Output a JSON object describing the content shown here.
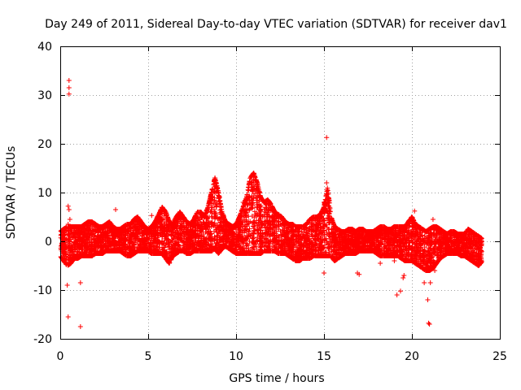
{
  "chart_data": {
    "type": "scatter",
    "title": "Day 249 of 2011, Sidereal Day-to-day VTEC variation (SDTVAR) for receiver dav1",
    "xlabel": "GPS time / hours",
    "ylabel": "SDTVAR / TECUs",
    "xlim": [
      0,
      25
    ],
    "ylim": [
      -20,
      40
    ],
    "xticks": [
      0,
      5,
      10,
      15,
      20,
      25
    ],
    "xtick_labels": [
      "0",
      "5",
      "10",
      "15",
      "20",
      "25"
    ],
    "yticks": [
      -20,
      -10,
      0,
      10,
      20,
      30,
      40
    ],
    "ytick_labels": [
      "-20",
      "-10",
      "0",
      "10",
      "20",
      "30",
      "40"
    ],
    "grid": true,
    "marker": "+",
    "color": "#ff0000",
    "series": [
      {
        "name": "SDTVAR",
        "x": [
          0.5,
          0.5,
          0.5,
          0.45,
          0.5,
          0.55,
          0.4,
          0.45,
          0.45,
          1.15,
          1.15,
          0.55,
          3.15,
          5.2,
          10.4,
          10.55,
          10.95,
          11.35,
          11.8,
          12.35,
          14.2,
          14.75,
          15.15,
          15.15,
          15.0,
          16.9,
          17.0,
          19.15,
          19.35,
          19.5,
          19.55,
          20.15,
          20.7,
          20.9,
          20.95,
          21.0,
          21.05,
          21.2,
          21.3,
          15.0,
          18.2,
          19.0
        ],
        "y": [
          33,
          31.5,
          30.2,
          7.2,
          6.5,
          4.5,
          -9,
          -15.5,
          3.5,
          -17.5,
          -8.5,
          -3.5,
          6.5,
          5.3,
          8,
          5.5,
          7,
          6,
          5.5,
          5,
          4.5,
          5,
          21.3,
          12,
          8,
          -6.5,
          -6.8,
          -11,
          -10.2,
          -7.5,
          -7,
          6.2,
          -8.5,
          -12,
          -16.8,
          -17,
          -8.5,
          4.5,
          -6,
          -6.5,
          -4.5,
          -4
        ]
      }
    ],
    "bands": {
      "hours": [
        0,
        0.2,
        0.4,
        0.6,
        0.8,
        1.0,
        1.2,
        1.4,
        1.6,
        1.8,
        2.0,
        2.2,
        2.4,
        2.6,
        2.8,
        3.0,
        3.2,
        3.4,
        3.6,
        3.8,
        4.0,
        4.2,
        4.4,
        4.6,
        4.8,
        5.0,
        5.2,
        5.4,
        5.6,
        5.8,
        6.0,
        6.2,
        6.4,
        6.6,
        6.8,
        7.0,
        7.2,
        7.4,
        7.6,
        7.8,
        8.0,
        8.2,
        8.4,
        8.6,
        8.8,
        9.0,
        9.2,
        9.4,
        9.6,
        9.8,
        10.0,
        10.2,
        10.4,
        10.6,
        10.8,
        11.0,
        11.2,
        11.4,
        11.6,
        11.8,
        12.0,
        12.2,
        12.4,
        12.6,
        12.8,
        13.0,
        13.2,
        13.4,
        13.6,
        13.8,
        14.0,
        14.2,
        14.4,
        14.6,
        14.8,
        15.0,
        15.2,
        15.4,
        15.6,
        15.8,
        16.0,
        16.2,
        16.4,
        16.6,
        16.8,
        17.0,
        17.2,
        17.4,
        17.6,
        17.8,
        18.0,
        18.2,
        18.4,
        18.6,
        18.8,
        19.0,
        19.2,
        19.4,
        19.6,
        19.8,
        20.0,
        20.2,
        20.4,
        20.6,
        20.8,
        21.0,
        21.2,
        21.4,
        21.6,
        21.8,
        22.0,
        22.2,
        22.4,
        22.6,
        22.8,
        23.0,
        23.2,
        23.4,
        23.6,
        23.8,
        24.0
      ],
      "upper": [
        2,
        2.5,
        3,
        3,
        3,
        3,
        3,
        3.5,
        4,
        4,
        3.5,
        3,
        3,
        3.5,
        4,
        3,
        2.5,
        2.5,
        3,
        3.5,
        3.5,
        4.5,
        5,
        4,
        3,
        2.5,
        3,
        4,
        5.5,
        7,
        6,
        4,
        3.5,
        5,
        6,
        5,
        4,
        3.5,
        4.5,
        6,
        6,
        5,
        7,
        10,
        13,
        10,
        6,
        4,
        3.5,
        3,
        3.5,
        5,
        7,
        9,
        13,
        14,
        12,
        9,
        8,
        8.5,
        7.5,
        6,
        5.5,
        5,
        4,
        3.5,
        3.5,
        3,
        3,
        3,
        3.5,
        4.5,
        5,
        5,
        5.5,
        7,
        11,
        5,
        3,
        2.5,
        2,
        2,
        2.5,
        2.5,
        2,
        2.5,
        2.5,
        2,
        2,
        2,
        2.5,
        3,
        3,
        2.5,
        2.5,
        3,
        3,
        3,
        3,
        4,
        5,
        3.5,
        3,
        2.5,
        2,
        2.5,
        3,
        3,
        2.5,
        2,
        1.5,
        2,
        2,
        1.5,
        1.5,
        1.5,
        2.5,
        2,
        1.5,
        1,
        0.5
      ],
      "lower": [
        -3,
        -4,
        -5,
        -4.5,
        -3.5,
        -3.5,
        -3,
        -3,
        -3,
        -3,
        -2.5,
        -2.5,
        -2.5,
        -2,
        -2,
        -2,
        -2,
        -2,
        -2.5,
        -3,
        -3,
        -2.5,
        -2,
        -2,
        -2,
        -2,
        -2.5,
        -2.5,
        -2.5,
        -2.5,
        -3.5,
        -4.5,
        -3,
        -2.5,
        -2,
        -2,
        -2.5,
        -2.5,
        -2,
        -2,
        -2,
        -2,
        -2,
        -2,
        -1.5,
        -2.5,
        -1.5,
        -1,
        -1.5,
        -2,
        -2.5,
        -2.5,
        -2.5,
        -2.5,
        -2.5,
        -2.5,
        -2.5,
        -2.5,
        -2,
        -2,
        -2,
        -2,
        -2.5,
        -2.5,
        -2.5,
        -3,
        -3.5,
        -4,
        -4,
        -3.5,
        -3.5,
        -3.5,
        -3,
        -3,
        -3,
        -3,
        -3,
        -3,
        -4,
        -3.5,
        -3,
        -2.5,
        -2.5,
        -2.5,
        -2.5,
        -2,
        -2,
        -2,
        -2,
        -2,
        -2.5,
        -3,
        -3,
        -3,
        -3,
        -3,
        -3,
        -3.5,
        -4,
        -4,
        -4,
        -4.5,
        -5,
        -5.5,
        -6,
        -6,
        -5.5,
        -4.5,
        -3.5,
        -3,
        -2.5,
        -2.5,
        -2.5,
        -2.5,
        -3,
        -3,
        -3.5,
        -4,
        -4.5,
        -5,
        -4
      ]
    }
  }
}
